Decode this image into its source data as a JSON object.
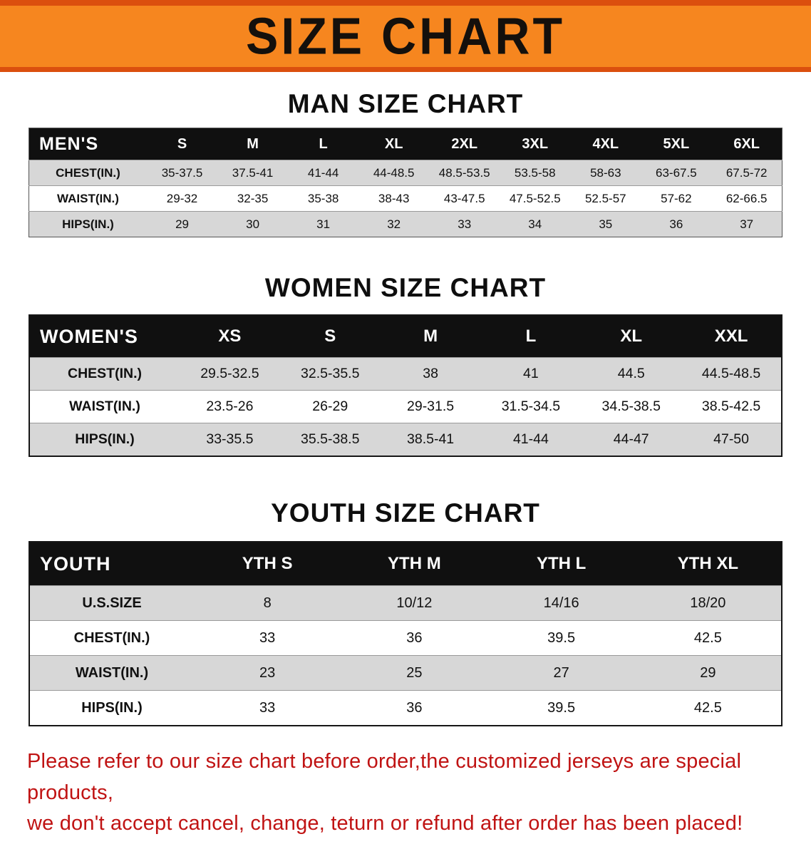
{
  "banner": {
    "title": "SIZE CHART"
  },
  "colors": {
    "banner_bg": "#F6861F",
    "banner_edge": "#DB4F0E",
    "table_header_bg": "#101010",
    "row_shade": "#D7D7D7",
    "disclaimer_red": "#C01313"
  },
  "chart_data": [
    {
      "type": "table",
      "heading": "MAN SIZE CHART",
      "corner_label": "MEN'S",
      "columns": [
        "S",
        "M",
        "L",
        "XL",
        "2XL",
        "3XL",
        "4XL",
        "5XL",
        "6XL"
      ],
      "rows": [
        {
          "label": "CHEST(IN.)",
          "values": [
            "35-37.5",
            "37.5-41",
            "41-44",
            "44-48.5",
            "48.5-53.5",
            "53.5-58",
            "58-63",
            "63-67.5",
            "67.5-72"
          ]
        },
        {
          "label": "WAIST(IN.)",
          "values": [
            "29-32",
            "32-35",
            "35-38",
            "38-43",
            "43-47.5",
            "47.5-52.5",
            "52.5-57",
            "57-62",
            "62-66.5"
          ]
        },
        {
          "label": "HIPS(IN.)",
          "values": [
            "29",
            "30",
            "31",
            "32",
            "33",
            "34",
            "35",
            "36",
            "37"
          ]
        }
      ],
      "shaded_rows": [
        0,
        2
      ]
    },
    {
      "type": "table",
      "heading": "WOMEN SIZE CHART",
      "corner_label": "WOMEN'S",
      "columns": [
        "XS",
        "S",
        "M",
        "L",
        "XL",
        "XXL"
      ],
      "rows": [
        {
          "label": "CHEST(IN.)",
          "values": [
            "29.5-32.5",
            "32.5-35.5",
            "38",
            "41",
            "44.5",
            "44.5-48.5"
          ]
        },
        {
          "label": "WAIST(IN.)",
          "values": [
            "23.5-26",
            "26-29",
            "29-31.5",
            "31.5-34.5",
            "34.5-38.5",
            "38.5-42.5"
          ]
        },
        {
          "label": "HIPS(IN.)",
          "values": [
            "33-35.5",
            "35.5-38.5",
            "38.5-41",
            "41-44",
            "44-47",
            "47-50"
          ]
        }
      ],
      "shaded_rows": [
        0,
        2
      ]
    },
    {
      "type": "table",
      "heading": "YOUTH SIZE CHART",
      "corner_label": "YOUTH",
      "columns": [
        "YTH S",
        "YTH M",
        "YTH L",
        "YTH XL"
      ],
      "rows": [
        {
          "label": "U.S.SIZE",
          "values": [
            "8",
            "10/12",
            "14/16",
            "18/20"
          ]
        },
        {
          "label": "CHEST(IN.)",
          "values": [
            "33",
            "36",
            "39.5",
            "42.5"
          ]
        },
        {
          "label": "WAIST(IN.)",
          "values": [
            "23",
            "25",
            "27",
            "29"
          ]
        },
        {
          "label": "HIPS(IN.)",
          "values": [
            "33",
            "36",
            "39.5",
            "42.5"
          ]
        }
      ],
      "shaded_rows": [
        0,
        2
      ]
    }
  ],
  "disclaimer": {
    "line1": "Please refer to our size chart before order,the customized jerseys are special products,",
    "line2": "we don't accept cancel, change, teturn or refund after order has been placed!"
  }
}
